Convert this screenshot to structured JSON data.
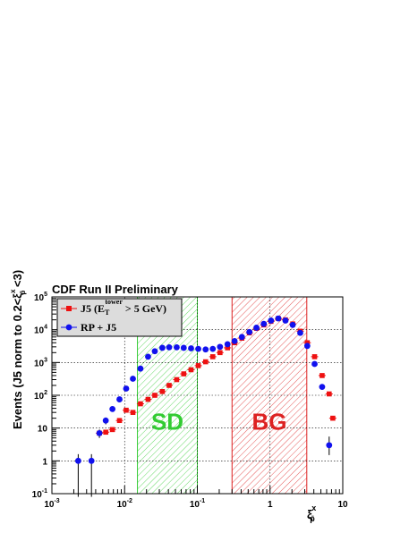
{
  "chart_data": {
    "type": "scatter",
    "title": "CDF Run II Preliminary",
    "xlabel_base": "ξ",
    "xlabel_sup": "x",
    "xlabel_sub": "p̄",
    "ylabel": "Events (J5 norm to 0.2<ξ",
    "ylabel_sup": "x",
    "ylabel_sub": "p̄",
    "ylabel_tail": " <3)",
    "x_scale": "log",
    "y_scale": "log",
    "xlim": [
      0.001,
      10
    ],
    "ylim": [
      0.1,
      100000
    ],
    "x_ticks": [
      {
        "value": 0.001,
        "base": "10",
        "exp": "-3"
      },
      {
        "value": 0.01,
        "base": "10",
        "exp": "-2"
      },
      {
        "value": 0.1,
        "base": "10",
        "exp": "-1"
      },
      {
        "value": 1,
        "base": "1",
        "exp": ""
      },
      {
        "value": 10,
        "base": "10",
        "exp": ""
      }
    ],
    "y_ticks": [
      {
        "value": 0.1,
        "base": "10",
        "exp": "-1"
      },
      {
        "value": 1,
        "base": "1",
        "exp": ""
      },
      {
        "value": 10,
        "base": "10",
        "exp": ""
      },
      {
        "value": 100,
        "base": "10",
        "exp": "2"
      },
      {
        "value": 1000,
        "base": "10",
        "exp": "3"
      },
      {
        "value": 10000,
        "base": "10",
        "exp": "4"
      },
      {
        "value": 100000,
        "base": "10",
        "exp": "5"
      }
    ],
    "grid": true,
    "legend_position": "top-left",
    "regions": [
      {
        "label": "SD",
        "x_range": [
          0.015,
          0.1
        ],
        "color": "#33cc33"
      },
      {
        "label": "BG",
        "x_range": [
          0.3,
          3.2
        ],
        "color": "#dd2222"
      }
    ],
    "series": [
      {
        "name": "J5 (E",
        "name_sub": "T",
        "name_sup": "tower",
        "name_tail": " > 5 GeV)",
        "color": "#ee1111",
        "marker": "square",
        "points": [
          {
            "x": 0.0045,
            "y": 7
          },
          {
            "x": 0.0055,
            "y": 7.5
          },
          {
            "x": 0.0068,
            "y": 9
          },
          {
            "x": 0.0085,
            "y": 17
          },
          {
            "x": 0.0105,
            "y": 35
          },
          {
            "x": 0.013,
            "y": 30
          },
          {
            "x": 0.0165,
            "y": 55
          },
          {
            "x": 0.021,
            "y": 75
          },
          {
            "x": 0.026,
            "y": 100
          },
          {
            "x": 0.033,
            "y": 130
          },
          {
            "x": 0.041,
            "y": 200
          },
          {
            "x": 0.052,
            "y": 300
          },
          {
            "x": 0.065,
            "y": 450
          },
          {
            "x": 0.082,
            "y": 600
          },
          {
            "x": 0.103,
            "y": 800
          },
          {
            "x": 0.13,
            "y": 1050
          },
          {
            "x": 0.163,
            "y": 1500
          },
          {
            "x": 0.205,
            "y": 2000
          },
          {
            "x": 0.26,
            "y": 2800
          },
          {
            "x": 0.325,
            "y": 4000
          },
          {
            "x": 0.41,
            "y": 5500
          },
          {
            "x": 0.52,
            "y": 8000
          },
          {
            "x": 0.65,
            "y": 11000
          },
          {
            "x": 0.82,
            "y": 14000
          },
          {
            "x": 1.03,
            "y": 18000
          },
          {
            "x": 1.3,
            "y": 22000
          },
          {
            "x": 1.63,
            "y": 20000
          },
          {
            "x": 2.05,
            "y": 15000
          },
          {
            "x": 2.6,
            "y": 9000
          },
          {
            "x": 3.25,
            "y": 4000
          },
          {
            "x": 4.1,
            "y": 1500
          },
          {
            "x": 5.2,
            "y": 400
          },
          {
            "x": 6.5,
            "y": 110
          },
          {
            "x": 7.3,
            "y": 20
          }
        ]
      },
      {
        "name": "RP + J5",
        "color": "#1111ee",
        "marker": "circle",
        "points": [
          {
            "x": 0.0023,
            "y": 1,
            "err_lo": 0.08,
            "err_hi": 1.6
          },
          {
            "x": 0.0035,
            "y": 1,
            "err_lo": 0.08,
            "err_hi": 1.6
          },
          {
            "x": 0.0045,
            "y": 7,
            "err_lo": 5,
            "err_hi": 9
          },
          {
            "x": 0.0055,
            "y": 17,
            "err_lo": 13,
            "err_hi": 21
          },
          {
            "x": 0.0068,
            "y": 38,
            "err_lo": 32,
            "err_hi": 44
          },
          {
            "x": 0.0085,
            "y": 75
          },
          {
            "x": 0.0105,
            "y": 160
          },
          {
            "x": 0.013,
            "y": 320
          },
          {
            "x": 0.0165,
            "y": 650
          },
          {
            "x": 0.021,
            "y": 1500
          },
          {
            "x": 0.026,
            "y": 2200
          },
          {
            "x": 0.033,
            "y": 2800
          },
          {
            "x": 0.041,
            "y": 2900
          },
          {
            "x": 0.052,
            "y": 2900
          },
          {
            "x": 0.065,
            "y": 2800
          },
          {
            "x": 0.082,
            "y": 2700
          },
          {
            "x": 0.103,
            "y": 2600
          },
          {
            "x": 0.13,
            "y": 2500
          },
          {
            "x": 0.163,
            "y": 2600
          },
          {
            "x": 0.205,
            "y": 3000
          },
          {
            "x": 0.26,
            "y": 3600
          },
          {
            "x": 0.325,
            "y": 4500
          },
          {
            "x": 0.41,
            "y": 6000
          },
          {
            "x": 0.52,
            "y": 8500
          },
          {
            "x": 0.65,
            "y": 11500
          },
          {
            "x": 0.82,
            "y": 15000
          },
          {
            "x": 1.03,
            "y": 19000
          },
          {
            "x": 1.3,
            "y": 22000
          },
          {
            "x": 1.63,
            "y": 19000
          },
          {
            "x": 2.05,
            "y": 14000
          },
          {
            "x": 2.6,
            "y": 8000
          },
          {
            "x": 3.25,
            "y": 3200
          },
          {
            "x": 4.1,
            "y": 900
          },
          {
            "x": 5.2,
            "y": 180
          },
          {
            "x": 6.5,
            "y": 3,
            "err_lo": 1.5,
            "err_hi": 5.5
          }
        ]
      }
    ]
  }
}
